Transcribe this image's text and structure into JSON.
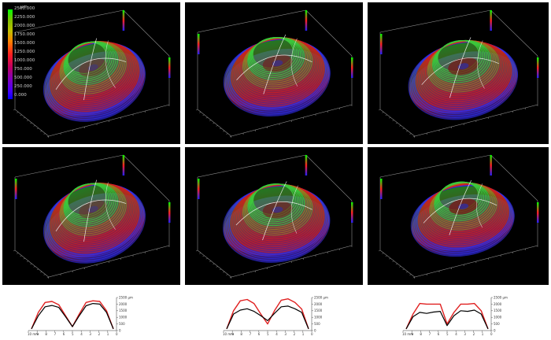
{
  "legend": {
    "unit": "µm",
    "ticks": [
      "2500.000",
      "2250.000",
      "2000.000",
      "1750.000",
      "1500.000",
      "1250.000",
      "1000.000",
      "750.000",
      "500.000",
      "250.000",
      "0.000"
    ]
  },
  "profiles": [
    {
      "y_ticks": [
        "2500 µm",
        "2000",
        "1500",
        "1000",
        "500",
        "0"
      ],
      "x_ticks": [
        "10 mm",
        "9",
        "8",
        "7",
        "6",
        "5",
        "4",
        "3",
        "2",
        "1",
        "0"
      ]
    },
    {
      "y_ticks": [
        "2500 µm",
        "2000",
        "1500",
        "1000",
        "500",
        "0"
      ],
      "x_ticks": [
        "10 mm",
        "9",
        "8",
        "7",
        "6",
        "5",
        "4",
        "3",
        "2",
        "1",
        "0"
      ]
    },
    {
      "y_ticks": [
        "2500 µm",
        "2000",
        "1500",
        "1000",
        "500",
        "0"
      ],
      "x_ticks": [
        "10 mm",
        "9",
        "8",
        "7",
        "6",
        "5",
        "4",
        "3",
        "2",
        "1",
        "0"
      ]
    }
  ],
  "colors": {
    "profile_a": "#e02020",
    "profile_b": "#000000",
    "surface_top": "#3cc83c",
    "surface_mid": "#d02020",
    "surface_base": "#3030ff"
  }
}
